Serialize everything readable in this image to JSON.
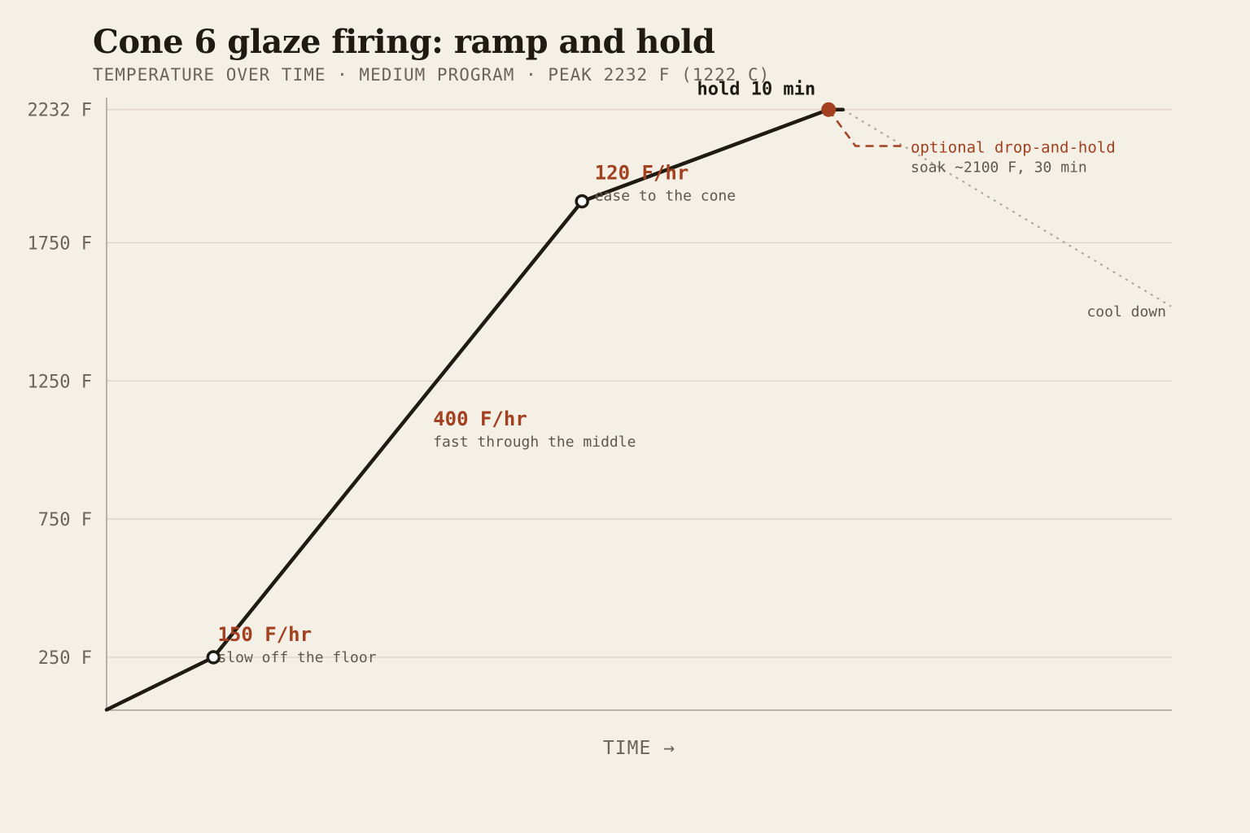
{
  "title": "Cone 6 glaze firing: ramp and hold",
  "subtitle": "TEMPERATURE OVER TIME · MEDIUM PROGRAM · PEAK 2232 F (1222 C)",
  "chart_data": {
    "type": "line",
    "title": "Cone 6 glaze firing: ramp and hold",
    "xlabel": "TIME →",
    "ylabel": "",
    "ylim": [
      60,
      2232
    ],
    "grid": true,
    "y_ticks": [
      {
        "value": 2232,
        "label": "2232 F"
      },
      {
        "value": 1750,
        "label": "1750 F"
      },
      {
        "value": 1250,
        "label": "1250 F"
      },
      {
        "value": 750,
        "label": "750 F"
      },
      {
        "value": 250,
        "label": "250 F"
      }
    ],
    "series": [
      {
        "points": [
          {
            "x": 0,
            "y": 60
          },
          {
            "x": 1.27,
            "y": 250
          },
          {
            "x": 5.65,
            "y": 1900
          },
          {
            "x": 8.58,
            "y": 2232
          },
          {
            "x": 8.75,
            "y": 2232
          }
        ]
      }
    ],
    "optional_drop_hold": [
      {
        "x": 8.58,
        "y": 2232
      },
      {
        "x": 8.9,
        "y": 2100
      },
      {
        "x": 9.45,
        "y": 2100
      }
    ],
    "cool_down": [
      {
        "x": 8.75,
        "y": 2232
      },
      {
        "x": 12.65,
        "y": 1520
      }
    ],
    "segments": [
      {
        "rate": "150 F/hr",
        "note": "slow off the floor",
        "x": 1.32,
        "y": 250
      },
      {
        "rate": "400 F/hr",
        "note": "fast through the middle",
        "x": 3.88,
        "y": 1030
      },
      {
        "rate": "120 F/hr",
        "note": "ease to the cone",
        "x": 5.8,
        "y": 1920
      }
    ],
    "hold_label": "hold 10 min",
    "optional_label": "optional drop-and-hold",
    "optional_note": "soak ~2100 F, 30 min",
    "cool_label": "cool down",
    "colors": {
      "line": "#1f1a12",
      "accent": "#a2401f",
      "grid": "#d8d1c4",
      "axis": "#a59e92",
      "background": "#f5f0e6"
    }
  }
}
